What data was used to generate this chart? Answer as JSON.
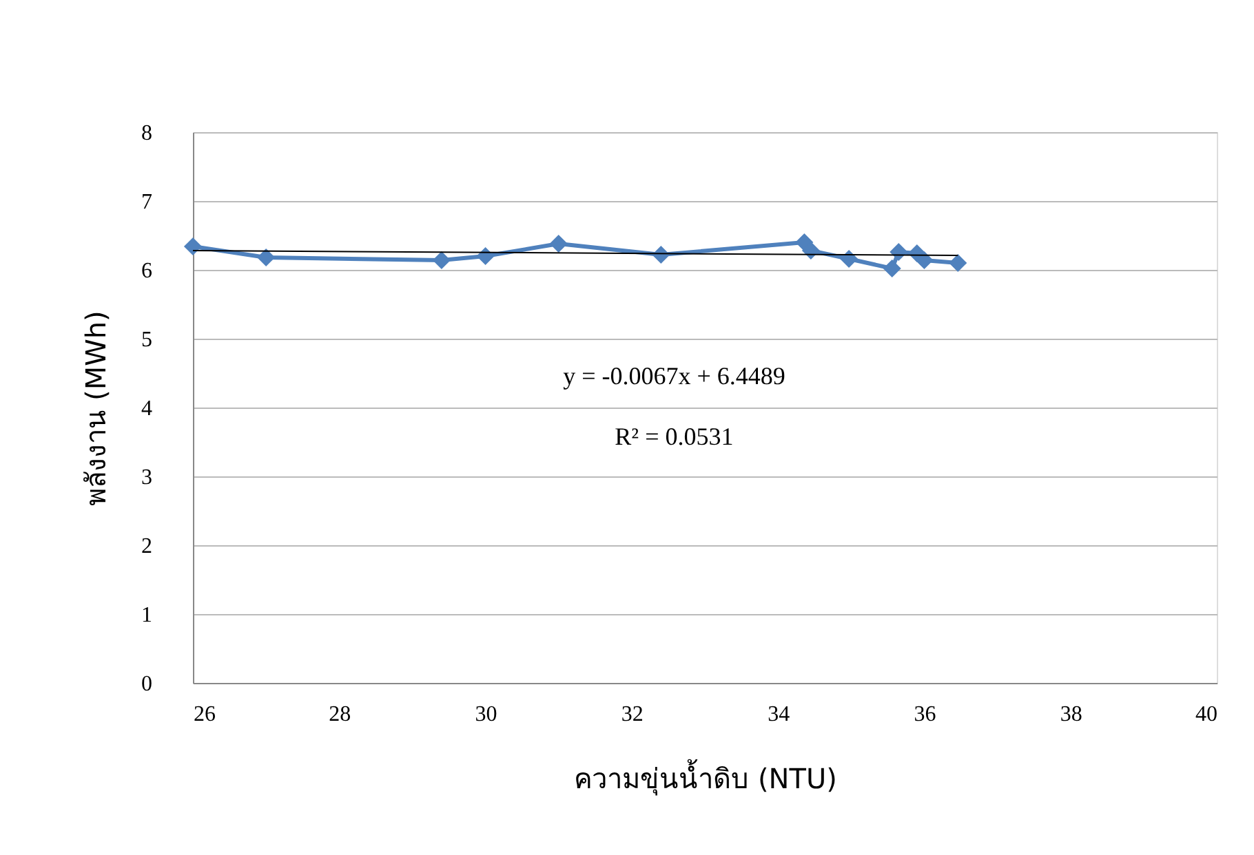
{
  "chart_data": {
    "type": "line",
    "xlabel": "ความขุ่นน้ำดิบ (NTU)",
    "ylabel": "พลังงาน (MWh)",
    "xlim": [
      26,
      40
    ],
    "xticks": [
      26,
      28,
      30,
      32,
      34,
      36,
      38,
      40
    ],
    "ylim": [
      0,
      8
    ],
    "yticks": [
      0,
      1,
      2,
      3,
      4,
      5,
      6,
      7,
      8
    ],
    "grid": "y",
    "marker": "diamond",
    "line_style": "solid",
    "series": [
      {
        "color": "#4f81bd",
        "x": [
          26,
          27.0,
          29.4,
          30.0,
          31.0,
          32.4,
          34.36,
          34.45,
          34.97,
          35.56,
          35.65,
          35.9,
          36.0,
          36.46
        ],
        "values": [
          6.34,
          6.18,
          6.14,
          6.2,
          6.38,
          6.22,
          6.4,
          6.28,
          6.16,
          6.02,
          6.26,
          6.24,
          6.14,
          6.1
        ]
      },
      {
        "color": "#000000",
        "marker": "none",
        "x": [
          26,
          36.46
        ],
        "values": [
          6.28,
          6.21
        ]
      }
    ],
    "annotations": [
      "y = -0.0067x + 6.4489",
      "R² = 0.0531"
    ]
  }
}
